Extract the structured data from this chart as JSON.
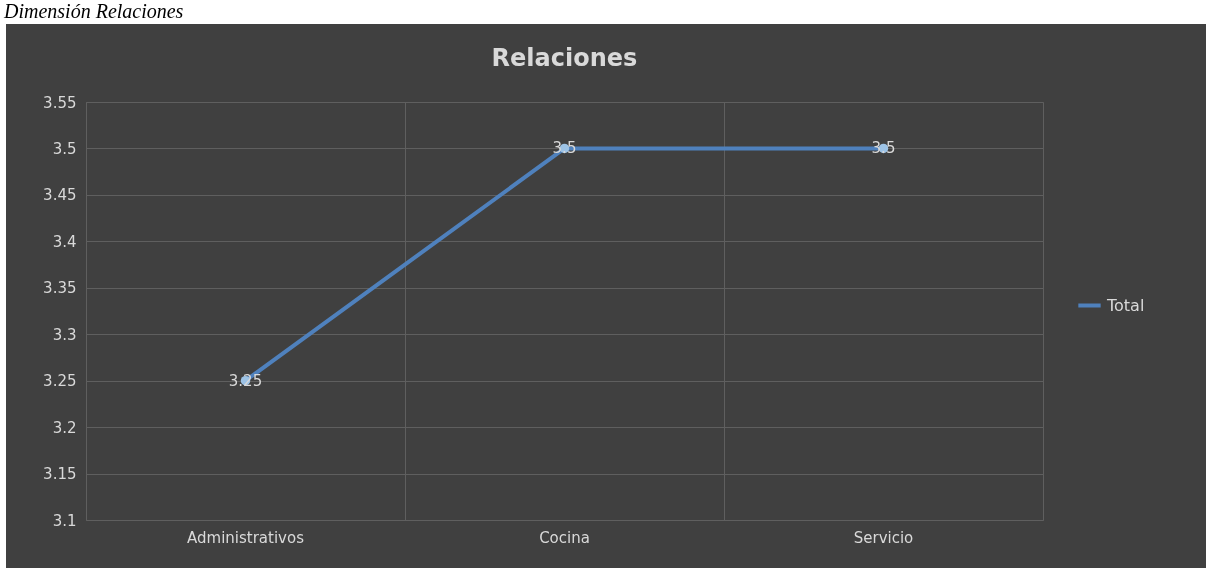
{
  "chart_data": {
    "type": "line",
    "title": "Relaciones",
    "annotations": [
      "Dimensión Relaciones"
    ],
    "categories": [
      "Administrativos",
      "Cocina",
      "Servicio"
    ],
    "series": [
      {
        "name": "Total",
        "color": "#4f81bd",
        "values": [
          3.25,
          3.5,
          3.5
        ]
      }
    ],
    "ylim": [
      3.1,
      3.55
    ],
    "yticks": [
      3.1,
      3.15,
      3.2,
      3.25,
      3.3,
      3.35,
      3.4,
      3.45,
      3.5,
      3.55
    ],
    "grid": true,
    "legend": "right",
    "marker": "circle",
    "data_labels": true
  }
}
